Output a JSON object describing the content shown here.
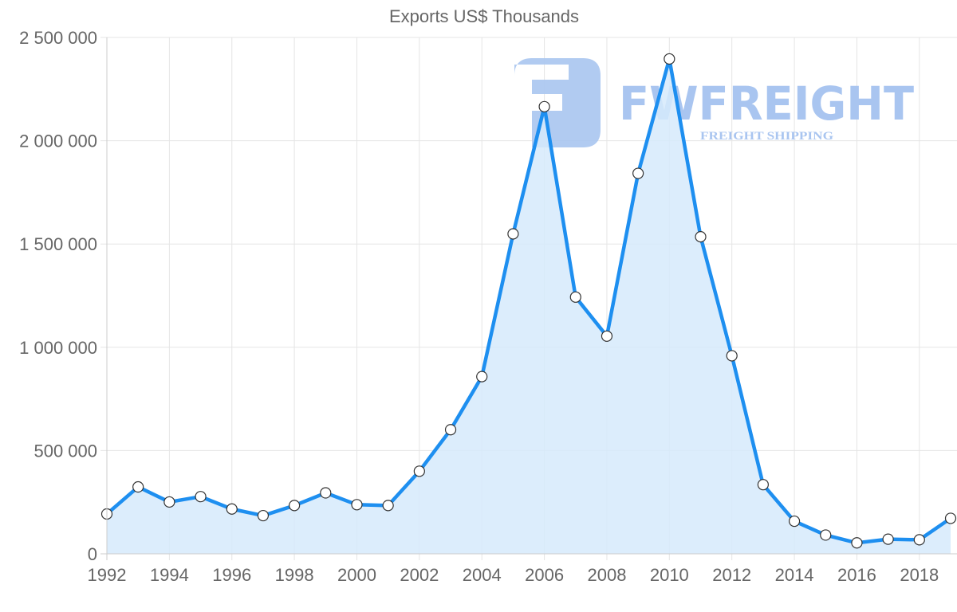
{
  "chart_data": {
    "type": "area",
    "title": "Exports US$ Thousands",
    "xlabel": "",
    "ylabel": "",
    "x": [
      1992,
      1993,
      1994,
      1995,
      1996,
      1997,
      1998,
      1999,
      2000,
      2001,
      2002,
      2003,
      2004,
      2005,
      2006,
      2007,
      2008,
      2009,
      2010,
      2011,
      2012,
      2013,
      2014,
      2015,
      2016,
      2017,
      2018,
      2019
    ],
    "series": [
      {
        "name": "Exports US$ Thousands",
        "values": [
          193000,
          324000,
          251000,
          277000,
          217000,
          185000,
          234000,
          295000,
          238000,
          234000,
          400000,
          601000,
          858000,
          1549000,
          2165000,
          1243000,
          1054000,
          1842000,
          2396000,
          1535000,
          959000,
          335000,
          158000,
          91000,
          53000,
          71000,
          68000,
          172000
        ]
      }
    ],
    "xticks": [
      "1992",
      "1994",
      "1996",
      "1998",
      "2000",
      "2002",
      "2004",
      "2006",
      "2008",
      "2010",
      "2012",
      "2014",
      "2016",
      "2018"
    ],
    "yticks": [
      "0",
      "500 000",
      "1 000 000",
      "1 500 000",
      "2 000 000",
      "2 500 000"
    ],
    "ylim": [
      0,
      2500000
    ],
    "xlim": [
      1992,
      2019
    ],
    "grid": true,
    "legend": "none",
    "colors": {
      "line": "#1e8ff0",
      "fill": "#d6eafc",
      "marker_fill": "#ffffff",
      "marker_stroke": "#333333",
      "grid": "#e5e5e5",
      "axis": "#cccccc",
      "tick_text": "#666666"
    }
  },
  "watermark": {
    "brand": "FWFREIGHT",
    "tagline": "FREIGHT SHIPPING",
    "color": "#a9c5f0"
  }
}
